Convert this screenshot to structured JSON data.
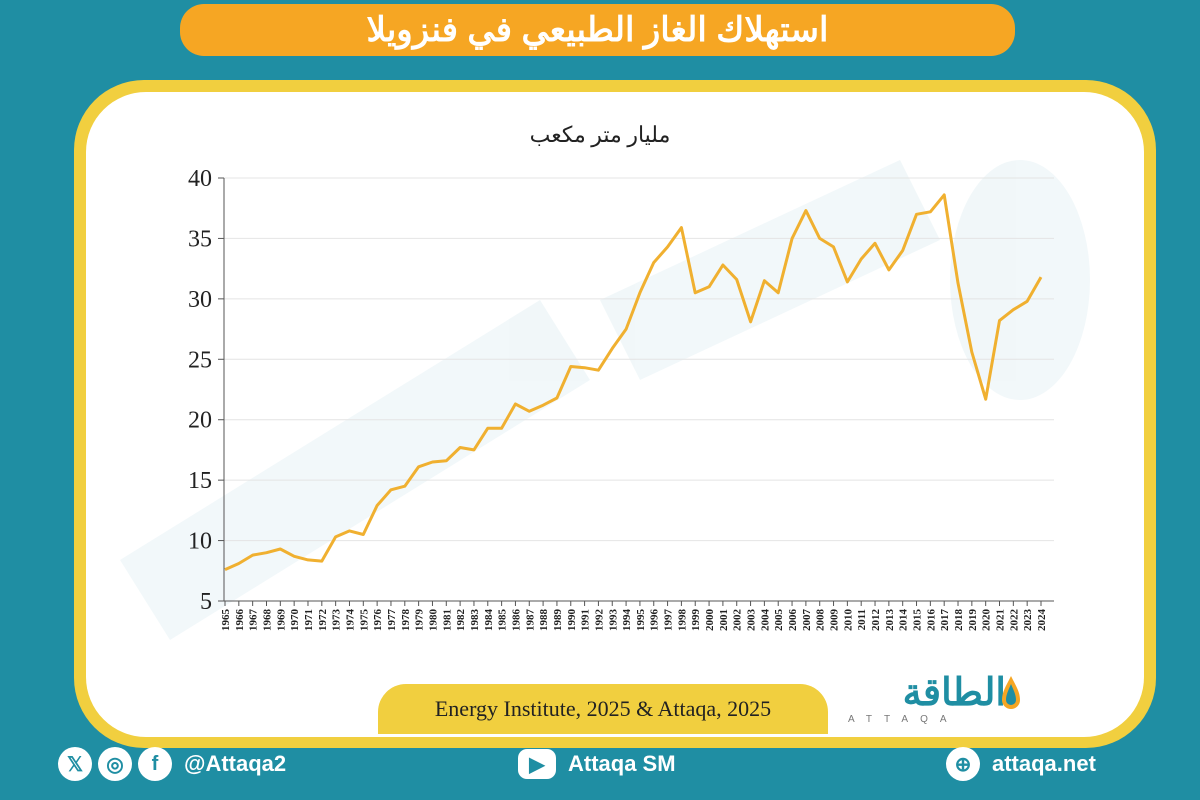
{
  "title": "استهلاك الغاز الطبيعي في فنزويلا",
  "unit_label": "مليار متر مكعب",
  "source": "Energy Institute, 2025 & Attaqa, 2025",
  "logo": {
    "arabic": "الطاقة",
    "latin": "ATTAQA"
  },
  "footer": {
    "social_handle": "@Attaqa2",
    "youtube": "Attaqa SM",
    "website": "attaqa.net",
    "icons": [
      "x-icon",
      "instagram-icon",
      "facebook-icon",
      "youtube-icon",
      "globe-icon"
    ]
  },
  "colors": {
    "background": "#1f8ea3",
    "title_bar": "#f6a623",
    "frame": "#f1cf3f",
    "line": "#f0b030"
  },
  "chart_data": {
    "type": "line",
    "title": "",
    "ylabel": "مليار متر مكعب",
    "ylim": [
      5,
      40
    ],
    "yticks": [
      5,
      10,
      15,
      20,
      25,
      30,
      35,
      40
    ],
    "grid": true,
    "x": [
      1965,
      1966,
      1967,
      1968,
      1969,
      1970,
      1971,
      1972,
      1973,
      1974,
      1975,
      1976,
      1977,
      1978,
      1979,
      1980,
      1981,
      1982,
      1983,
      1984,
      1985,
      1986,
      1987,
      1988,
      1989,
      1990,
      1991,
      1992,
      1993,
      1994,
      1995,
      1996,
      1997,
      1998,
      1999,
      2000,
      2001,
      2002,
      2003,
      2004,
      2005,
      2006,
      2007,
      2008,
      2009,
      2010,
      2011,
      2012,
      2013,
      2014,
      2015,
      2016,
      2017,
      2018,
      2019,
      2020,
      2021,
      2022,
      2023,
      2024
    ],
    "series": [
      {
        "values": [
          7.6,
          8.1,
          8.8,
          9.0,
          9.3,
          8.7,
          8.4,
          8.3,
          10.3,
          10.8,
          10.5,
          12.9,
          14.2,
          14.5,
          16.1,
          16.5,
          16.6,
          17.7,
          17.5,
          19.3,
          19.3,
          21.3,
          20.7,
          21.2,
          21.8,
          24.4,
          24.3,
          24.1,
          25.9,
          27.5,
          30.5,
          33.0,
          34.3,
          35.9,
          30.5,
          31.0,
          32.8,
          31.6,
          28.1,
          31.5,
          30.5,
          35.0,
          37.3,
          35.0,
          34.3,
          31.4,
          33.3,
          34.6,
          32.4,
          34.0,
          37.0,
          37.2,
          38.6,
          31.3,
          25.6,
          21.7,
          28.2,
          29.1,
          29.8,
          31.8
        ]
      }
    ]
  }
}
